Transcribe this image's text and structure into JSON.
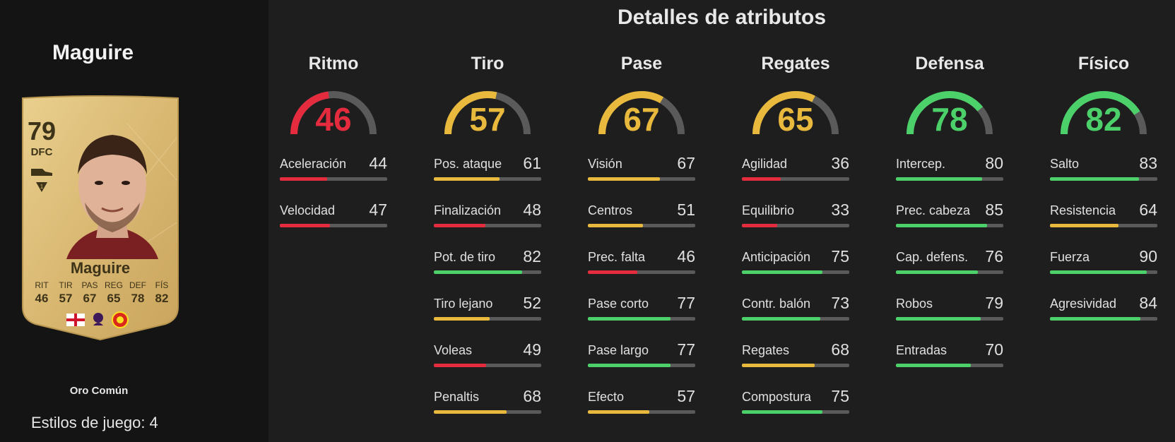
{
  "player": {
    "name": "Maguire",
    "rating": "79",
    "position": "DFC",
    "card_name": "Maguire",
    "card_type": "Oro Común",
    "playstyles": "Estilos de juego: 4",
    "card_stats": [
      {
        "label": "RIT",
        "value": "46"
      },
      {
        "label": "TIR",
        "value": "57"
      },
      {
        "label": "PAS",
        "value": "67"
      },
      {
        "label": "REG",
        "value": "65"
      },
      {
        "label": "DEF",
        "value": "78"
      },
      {
        "label": "FÍS",
        "value": "82"
      }
    ],
    "badges": [
      "england-flag-icon",
      "premier-league-icon",
      "manchester-united-crest-icon"
    ]
  },
  "title": "Detalles de atributos",
  "colors": {
    "red": "#e52b3e",
    "yellow": "#e8b93d",
    "green": "#4cd06a",
    "track": "#5a5a5a"
  },
  "categories": [
    {
      "name": "Ritmo",
      "value": 46,
      "stats": [
        {
          "label": "Aceleración",
          "value": 44
        },
        {
          "label": "Velocidad",
          "value": 47
        }
      ]
    },
    {
      "name": "Tiro",
      "value": 57,
      "stats": [
        {
          "label": "Pos. ataque",
          "value": 61
        },
        {
          "label": "Finalización",
          "value": 48
        },
        {
          "label": "Pot. de tiro",
          "value": 82
        },
        {
          "label": "Tiro lejano",
          "value": 52
        },
        {
          "label": "Voleas",
          "value": 49
        },
        {
          "label": "Penaltis",
          "value": 68
        }
      ]
    },
    {
      "name": "Pase",
      "value": 67,
      "stats": [
        {
          "label": "Visión",
          "value": 67
        },
        {
          "label": "Centros",
          "value": 51
        },
        {
          "label": "Prec. falta",
          "value": 46
        },
        {
          "label": "Pase corto",
          "value": 77
        },
        {
          "label": "Pase largo",
          "value": 77
        },
        {
          "label": "Efecto",
          "value": 57
        }
      ]
    },
    {
      "name": "Regates",
      "value": 65,
      "stats": [
        {
          "label": "Agilidad",
          "value": 36
        },
        {
          "label": "Equilibrio",
          "value": 33
        },
        {
          "label": "Anticipación",
          "value": 75
        },
        {
          "label": "Contr. balón",
          "value": 73
        },
        {
          "label": "Regates",
          "value": 68
        },
        {
          "label": "Compostura",
          "value": 75
        }
      ]
    },
    {
      "name": "Defensa",
      "value": 78,
      "stats": [
        {
          "label": "Intercep.",
          "value": 80
        },
        {
          "label": "Prec. cabeza",
          "value": 85
        },
        {
          "label": "Cap. defens.",
          "value": 76
        },
        {
          "label": "Robos",
          "value": 79
        },
        {
          "label": "Entradas",
          "value": 70
        }
      ]
    },
    {
      "name": "Físico",
      "value": 82,
      "stats": [
        {
          "label": "Salto",
          "value": 83
        },
        {
          "label": "Resistencia",
          "value": 64
        },
        {
          "label": "Fuerza",
          "value": 90
        },
        {
          "label": "Agresividad",
          "value": 84
        }
      ]
    }
  ]
}
